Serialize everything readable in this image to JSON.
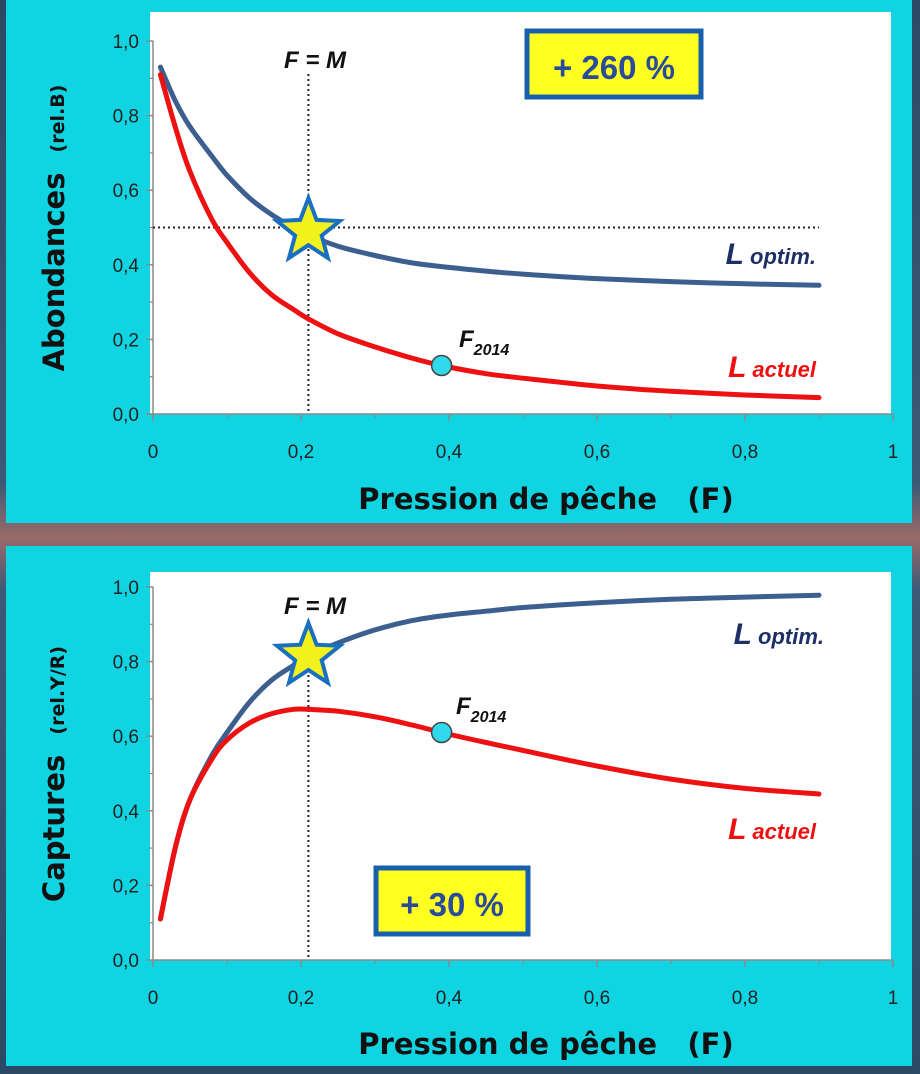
{
  "colors": {
    "panel_bg": "#10d4e2",
    "plot_bg": "#ffffff",
    "optim_line": "#3c5f8f",
    "actuel_line": "#ee1111",
    "star_fill": "#f2f21e",
    "star_stroke": "#1a6fc0",
    "marker_fill": "#2fd8ea",
    "badge_fill": "#ffff22",
    "badge_border": "#1a5fae",
    "badge_text": "#2a4a9a",
    "label_optim": "#1e2f66",
    "label_actuel": "#ee1111"
  },
  "chart_data": [
    {
      "type": "line",
      "ylabel": "Abondances",
      "ylabel_unit": "(rel.B)",
      "xlabel": "Pression de pêche   (F)",
      "xlim": [
        0,
        1
      ],
      "ylim": [
        0,
        1
      ],
      "x_ticks": [
        "0",
        "0,2",
        "0,4",
        "0,6",
        "0,8",
        "1"
      ],
      "y_ticks": [
        "0,0",
        "0,2",
        "0,4",
        "0,6",
        "0,8",
        "1,0"
      ],
      "grid": false,
      "series": [
        {
          "name": "L",
          "name_suffix": "optim.",
          "color_key": "optim_line",
          "x": [
            0.01,
            0.03,
            0.05,
            0.08,
            0.1,
            0.13,
            0.16,
            0.19,
            0.21,
            0.25,
            0.3,
            0.35,
            0.4,
            0.45,
            0.5,
            0.6,
            0.7,
            0.8,
            0.9
          ],
          "y": [
            0.93,
            0.84,
            0.77,
            0.69,
            0.64,
            0.58,
            0.535,
            0.5,
            0.48,
            0.45,
            0.425,
            0.405,
            0.393,
            0.383,
            0.375,
            0.363,
            0.355,
            0.349,
            0.345
          ]
        },
        {
          "name": "L",
          "name_suffix": "actuel",
          "color_key": "actuel_line",
          "x": [
            0.01,
            0.03,
            0.05,
            0.08,
            0.1,
            0.13,
            0.16,
            0.19,
            0.21,
            0.25,
            0.3,
            0.35,
            0.39,
            0.45,
            0.5,
            0.6,
            0.7,
            0.8,
            0.9
          ],
          "y": [
            0.91,
            0.77,
            0.65,
            0.52,
            0.46,
            0.38,
            0.32,
            0.28,
            0.255,
            0.215,
            0.18,
            0.15,
            0.13,
            0.108,
            0.096,
            0.075,
            0.061,
            0.051,
            0.044
          ]
        }
      ],
      "reference_lines": {
        "vline_x": 0.21,
        "vline_label": "F = M",
        "hline_y": 0.5
      },
      "optimum_star": {
        "x": 0.21,
        "y": 0.49
      },
      "current_point": {
        "x": 0.39,
        "y": 0.13,
        "label_main": "F",
        "label_sub": "2014"
      },
      "badge": {
        "text": "+ 260 %"
      }
    },
    {
      "type": "line",
      "ylabel": "Captures",
      "ylabel_unit": "(rel.Y/R)",
      "xlabel": "Pression de pêche   (F)",
      "xlim": [
        0,
        1
      ],
      "ylim": [
        0,
        1
      ],
      "x_ticks": [
        "0",
        "0,2",
        "0,4",
        "0,6",
        "0,8",
        "1"
      ],
      "y_ticks": [
        "0,0",
        "0,2",
        "0,4",
        "0,6",
        "0,8",
        "1,0"
      ],
      "grid": false,
      "series": [
        {
          "name": "L",
          "name_suffix": "optim.",
          "color_key": "optim_line",
          "x": [
            0.01,
            0.03,
            0.05,
            0.08,
            0.1,
            0.13,
            0.16,
            0.19,
            0.21,
            0.25,
            0.3,
            0.35,
            0.4,
            0.45,
            0.5,
            0.6,
            0.7,
            0.8,
            0.9
          ],
          "y": [
            0.11,
            0.3,
            0.43,
            0.55,
            0.61,
            0.69,
            0.75,
            0.79,
            0.815,
            0.85,
            0.885,
            0.91,
            0.925,
            0.935,
            0.945,
            0.958,
            0.967,
            0.973,
            0.978
          ]
        },
        {
          "name": "L",
          "name_suffix": "actuel",
          "color_key": "actuel_line",
          "x": [
            0.01,
            0.03,
            0.05,
            0.08,
            0.1,
            0.13,
            0.16,
            0.19,
            0.21,
            0.25,
            0.3,
            0.35,
            0.39,
            0.45,
            0.5,
            0.6,
            0.7,
            0.8,
            0.9
          ],
          "y": [
            0.11,
            0.3,
            0.43,
            0.54,
            0.59,
            0.635,
            0.66,
            0.672,
            0.672,
            0.667,
            0.652,
            0.63,
            0.61,
            0.583,
            0.562,
            0.52,
            0.485,
            0.46,
            0.445
          ]
        }
      ],
      "reference_lines": {
        "vline_x": 0.21,
        "vline_label": "F = M"
      },
      "optimum_star": {
        "x": 0.21,
        "y": 0.815
      },
      "current_point": {
        "x": 0.39,
        "y": 0.61,
        "label_main": "F",
        "label_sub": "2014"
      },
      "badge": {
        "text": "+ 30 %"
      }
    }
  ]
}
